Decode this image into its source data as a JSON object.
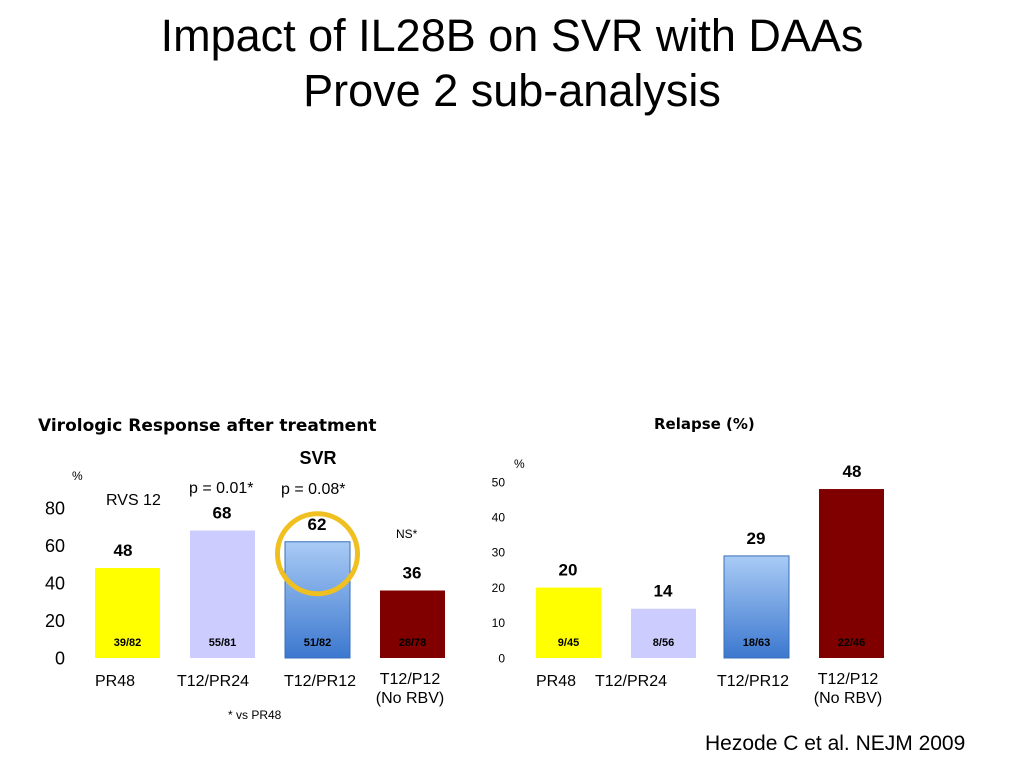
{
  "slide": {
    "title_line1": "Impact of IL28B on SVR with DAAs",
    "title_line2": "Prove 2 sub-analysis",
    "citation": "Hezode C et al. NEJM 2009"
  },
  "chart_data": [
    {
      "type": "bar",
      "title": "Virologic Response after treatment",
      "subtitle": "SVR",
      "ylabel": "%",
      "inner_label": "RVS 12",
      "ylim": [
        0,
        80
      ],
      "yticks": [
        "0",
        "20",
        "40",
        "60",
        "80"
      ],
      "grid": false,
      "legend": "none",
      "categories": [
        "PR48",
        "T12/PR24",
        "T12/PR12",
        "T12/P12\n(No RBV)"
      ],
      "values": [
        48,
        68,
        62,
        36
      ],
      "value_labels": [
        "48",
        "68",
        "62",
        "36"
      ],
      "fractions": [
        "39/82",
        "55/81",
        "51/82",
        "28/78"
      ],
      "colors": [
        "#ffff00",
        "#ccccff",
        "#6fa8e8",
        "#800000"
      ],
      "annotations": [
        "p = 0.01*",
        "p = 0.08*",
        "NS*"
      ],
      "highlighted_category": "T12/PR12",
      "footnote": "* vs PR48"
    },
    {
      "type": "bar",
      "title": "Relapse (%)",
      "ylabel": "%",
      "ylim": [
        0,
        50
      ],
      "yticks": [
        "0",
        "10",
        "20",
        "30",
        "40",
        "50"
      ],
      "grid": false,
      "legend": "none",
      "categories": [
        "PR48",
        "T12/PR24",
        "T12/PR12",
        "T12/P12\n(No RBV)"
      ],
      "values": [
        20,
        14,
        29,
        48
      ],
      "value_labels": [
        "20",
        "14",
        "29",
        "48"
      ],
      "fractions": [
        "9/45",
        "8/56",
        "18/63",
        "22/46"
      ],
      "colors": [
        "#ffff00",
        "#ccccff",
        "#6fa8e8",
        "#800000"
      ]
    }
  ]
}
